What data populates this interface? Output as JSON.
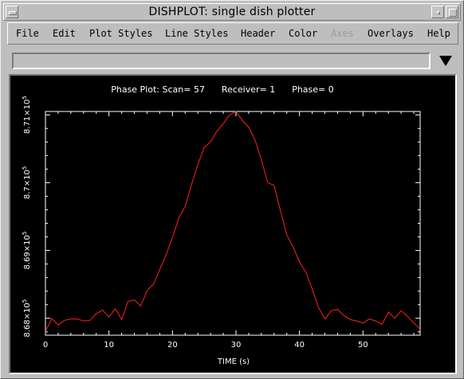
{
  "window": {
    "title": "DISHPLOT: single dish plotter"
  },
  "menubar": {
    "items": [
      {
        "label": "File",
        "enabled": true
      },
      {
        "label": "Edit",
        "enabled": true
      },
      {
        "label": "Plot Styles",
        "enabled": true
      },
      {
        "label": "Line Styles",
        "enabled": true
      },
      {
        "label": "Header",
        "enabled": true
      },
      {
        "label": "Color",
        "enabled": true
      },
      {
        "label": "Axes",
        "enabled": false
      },
      {
        "label": "Overlays",
        "enabled": true
      },
      {
        "label": "Help",
        "enabled": true
      }
    ]
  },
  "selector": {
    "value": ""
  },
  "plot": {
    "caption": "Phase Plot: Scan= 57      Receiver= 1      Phase= 0",
    "line_color": "#ff2020"
  },
  "chart_data": {
    "type": "line",
    "title": "Phase Plot: Scan= 57      Receiver= 1      Phase= 0",
    "xlabel": "TIME (s)",
    "ylabel": "",
    "xlim": [
      0,
      59
    ],
    "ylim": [
      867750,
      871050
    ],
    "x_ticks": [
      0,
      10,
      20,
      30,
      40,
      50
    ],
    "y_ticks": [
      {
        "value": 868000,
        "mantissa": "8.68",
        "exponent": "5"
      },
      {
        "value": 869000,
        "mantissa": "8.69",
        "exponent": "5"
      },
      {
        "value": 870000,
        "mantissa": "8.7",
        "exponent": "5"
      },
      {
        "value": 871000,
        "mantissa": "8.71",
        "exponent": "5"
      }
    ],
    "grid": false,
    "series": [
      {
        "x": [
          0,
          1,
          2,
          3,
          4,
          5,
          6,
          7,
          8,
          9,
          10,
          11,
          12,
          13,
          14,
          15,
          16,
          17,
          18,
          19,
          20,
          21,
          22,
          23,
          24,
          25,
          26,
          27,
          28,
          29,
          30,
          31,
          32,
          33,
          34,
          35,
          36,
          37,
          38,
          39,
          40,
          41,
          42,
          43,
          44,
          45,
          46,
          47,
          48,
          49,
          50,
          51,
          52,
          53,
          54,
          55,
          56,
          57,
          58,
          59
        ],
        "y": [
          867800,
          868000,
          867900,
          867970,
          867990,
          867990,
          867960,
          867970,
          868070,
          868120,
          868020,
          868140,
          867980,
          868250,
          868270,
          868180,
          868410,
          868500,
          868720,
          868940,
          869190,
          869480,
          869650,
          869970,
          870270,
          870520,
          870600,
          870760,
          870870,
          871000,
          871050,
          870920,
          870820,
          870630,
          870340,
          870000,
          869960,
          869590,
          869230,
          869050,
          868830,
          868680,
          868430,
          868160,
          867990,
          868110,
          868130,
          868040,
          867980,
          867960,
          867930,
          867990,
          867960,
          867910,
          868090,
          868000,
          868110,
          868030,
          867930,
          867840
        ]
      }
    ]
  }
}
